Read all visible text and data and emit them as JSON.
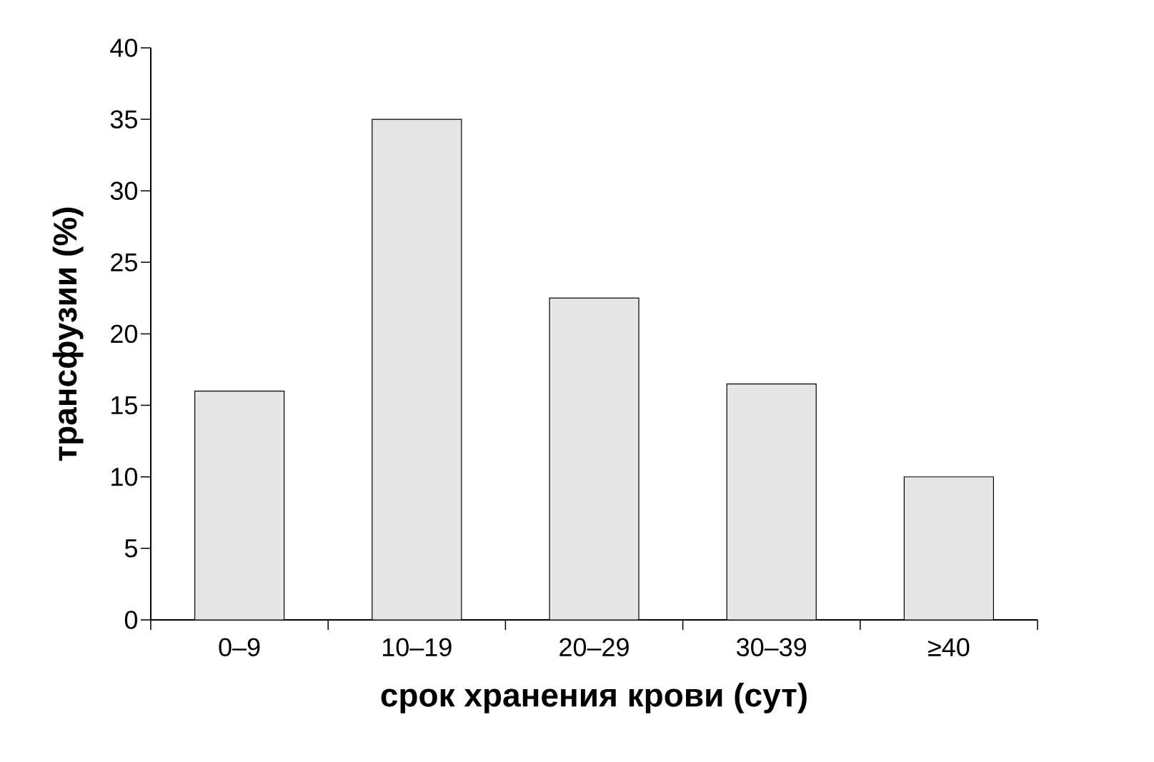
{
  "chart_data": {
    "type": "bar",
    "xlabel": "срок хранения крови (сут)",
    "ylabel": "трансфузии (%)",
    "categories": [
      "0–9",
      "10–19",
      "20–29",
      "30–39",
      "≥40"
    ],
    "values": [
      16,
      35,
      22.5,
      16.5,
      10
    ],
    "color": "#e6e6e6",
    "ylim": [
      0,
      40
    ],
    "yticks": [
      0,
      5,
      10,
      15,
      20,
      25,
      30,
      35,
      40
    ]
  }
}
